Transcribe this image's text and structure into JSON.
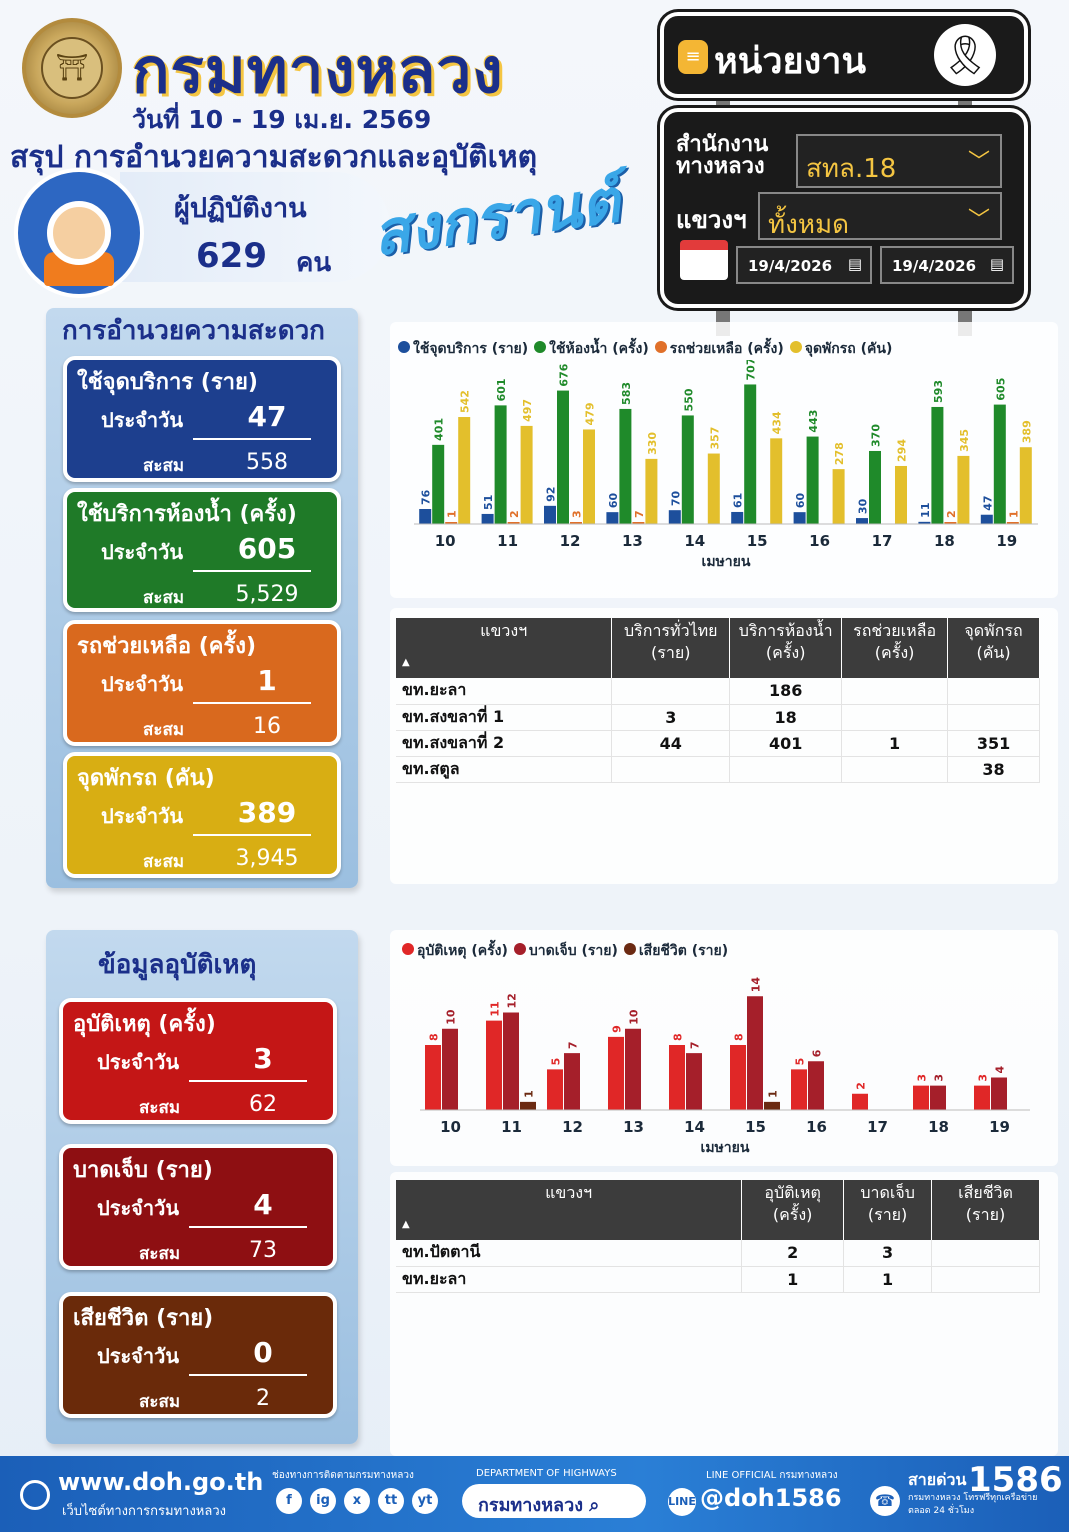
{
  "header": {
    "dept_title": "กรมทางหลวง",
    "date_range": "วันที่ 10 - 19 เม.ย. 2569",
    "summary_title": "สรุป การอำนวยความสะดวกและอุบัติเหตุ",
    "worker_label": "ผู้ปฏิบัติงาน",
    "worker_count": "629",
    "worker_unit": "คน",
    "festival": "สงกรานต์",
    "logo_text": "กรมทางหลวง"
  },
  "filters": {
    "panel_title": "หน่วยงาน",
    "office_label": "สำนักงานทางหลวง",
    "office_value": "สทล.18",
    "district_label": "แขวงฯ",
    "district_value": "ทั้งหมด",
    "date_from": "19/4/2026",
    "date_to": "19/4/2026"
  },
  "facility": {
    "title": "การอำนวยความสะดวก",
    "daily_label": "ประจำวัน",
    "total_label": "สะสม",
    "cards": [
      {
        "title": "ใช้จุดบริการ (ราย)",
        "daily": "47",
        "total": "558",
        "color": "#1d3f8e"
      },
      {
        "title": "ใช้บริการห้องน้ำ (ครั้ง)",
        "daily": "605",
        "total": "5,529",
        "color": "#1f7a28"
      },
      {
        "title": "รถช่วยเหลือ (ครั้ง)",
        "daily": "1",
        "total": "16",
        "color": "#d9691e"
      },
      {
        "title": "จุดพักรถ (คัน)",
        "daily": "389",
        "total": "3,945",
        "color": "#d8ae13"
      }
    ]
  },
  "accident": {
    "title": "ข้อมูลอุบัติเหตุ",
    "daily_label": "ประจำวัน",
    "total_label": "สะสม",
    "cards": [
      {
        "title": "อุบัติเหตุ (ครั้ง)",
        "daily": "3",
        "total": "62",
        "color": "#c41616"
      },
      {
        "title": "บาดเจ็บ (ราย)",
        "daily": "4",
        "total": "73",
        "color": "#8e0f12"
      },
      {
        "title": "เสียชีวิต (ราย)",
        "daily": "0",
        "total": "2",
        "color": "#6a2a0a"
      }
    ]
  },
  "chart_data": [
    {
      "type": "bar",
      "xlabel": "เมษายน",
      "categories": [
        "10",
        "11",
        "12",
        "13",
        "14",
        "15",
        "16",
        "17",
        "18",
        "19"
      ],
      "series": [
        {
          "name": "ใช้จุดบริการ (ราย)",
          "color": "#1d4f9c",
          "values": [
            76,
            51,
            92,
            60,
            70,
            61,
            60,
            30,
            11,
            47
          ]
        },
        {
          "name": "ใช้ห้องน้ำ (ครั้ง)",
          "color": "#1f8a2a",
          "values": [
            401,
            601,
            676,
            583,
            550,
            707,
            443,
            370,
            593,
            605
          ]
        },
        {
          "name": "รถช่วยเหลือ (ครั้ง)",
          "color": "#e0702a",
          "values": [
            1,
            2,
            3,
            7,
            null,
            null,
            null,
            null,
            2,
            1
          ]
        },
        {
          "name": "จุดพักรถ (คัน)",
          "color": "#e3bf2c",
          "values": [
            542,
            497,
            479,
            330,
            357,
            434,
            278,
            294,
            345,
            389
          ]
        }
      ],
      "ylim": [
        0,
        760
      ]
    },
    {
      "type": "bar",
      "xlabel": "เมษายน",
      "categories": [
        "10",
        "11",
        "12",
        "13",
        "14",
        "15",
        "16",
        "17",
        "18",
        "19"
      ],
      "series": [
        {
          "name": "อุบัติเหตุ (ครั้ง)",
          "color": "#e02727",
          "values": [
            8,
            11,
            5,
            9,
            8,
            8,
            5,
            2,
            3,
            3
          ]
        },
        {
          "name": "บาดเจ็บ (ราย)",
          "color": "#a51f2a",
          "values": [
            10,
            12,
            7,
            10,
            7,
            14,
            6,
            null,
            3,
            4
          ]
        },
        {
          "name": "เสียชีวิต (ราย)",
          "color": "#6b2a12",
          "values": [
            null,
            1,
            null,
            null,
            null,
            1,
            null,
            null,
            null,
            null
          ]
        }
      ],
      "ylim": [
        0,
        16
      ]
    }
  ],
  "table1": {
    "headers": [
      "แขวงฯ",
      "บริการทั่วไทย (ราย)",
      "บริการห้องน้ำ (ครั้ง)",
      "รถช่วยเหลือ (ครั้ง)",
      "จุดพักรถ (คัน)"
    ],
    "rows": [
      [
        "ขท.ยะลา",
        "",
        "186",
        "",
        ""
      ],
      [
        "ขท.สงขลาที่ 1",
        "3",
        "18",
        "",
        ""
      ],
      [
        "ขท.สงขลาที่ 2",
        "44",
        "401",
        "1",
        "351"
      ],
      [
        "ขท.สตูล",
        "",
        "",
        "",
        "38"
      ]
    ]
  },
  "table2": {
    "headers": [
      "แขวงฯ",
      "อุบัติเหตุ (ครั้ง)",
      "บาดเจ็บ (ราย)",
      "เสียชีวิต (ราย)"
    ],
    "rows": [
      [
        "ขท.ปัตตานี",
        "2",
        "3",
        ""
      ],
      [
        "ขท.ยะลา",
        "1",
        "1",
        ""
      ]
    ]
  },
  "footer": {
    "website": "www.doh.go.th",
    "website_sub": "เว็บไซต์ทางการกรมทางหลวง",
    "channels_label": "ช่องทางการติดตามกรมทางหลวง",
    "social": [
      "f",
      "ig",
      "x",
      "tt",
      "yt"
    ],
    "dept_en": "DEPARTMENT OF HIGHWAYS",
    "search_text": "กรมทางหลวง",
    "line_label": "LINE OFFICIAL กรมทางหลวง",
    "line_icon": "LINE",
    "line_id": "@doh1586",
    "hotline_label": "สายด่วน",
    "hotline_number": "1586",
    "hotline_sub": "กรมทางหลวง โทรฟรีทุกเครือข่าย ตลอด 24 ชั่วโมง"
  }
}
